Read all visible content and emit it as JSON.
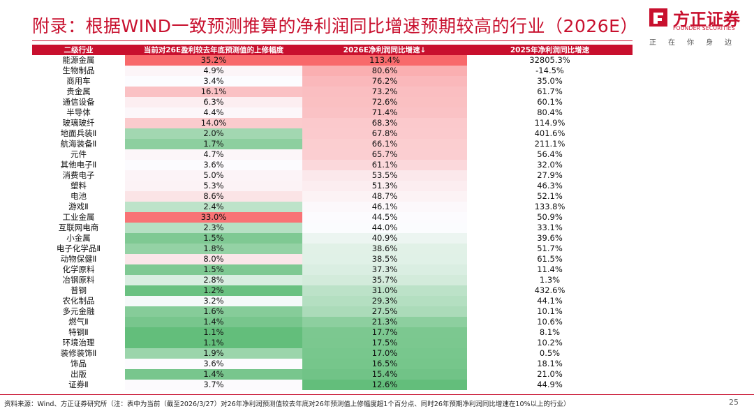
{
  "title": "附录：根据WIND一致预测推算的净利润同比增速预期较高的行业（2026E）",
  "logo": {
    "cn": "方正证券",
    "en": "FOUNDER SECURITIES",
    "slogan": "正在你身边",
    "brand_color": "#c8102e"
  },
  "table": {
    "headers": [
      "二级行业",
      "当前对26E盈利较去年底预测值的上修幅度",
      "2026E净利润同比增速↓",
      "2025年净利润同比增速"
    ],
    "rows": [
      [
        "能源金属",
        "35.2%",
        "113.4%",
        "32805.3%"
      ],
      [
        "生物制品",
        "4.9%",
        "80.6%",
        "-14.5%"
      ],
      [
        "商用车",
        "3.4%",
        "76.2%",
        "35.0%"
      ],
      [
        "贵金属",
        "16.1%",
        "73.2%",
        "61.7%"
      ],
      [
        "通信设备",
        "6.3%",
        "72.6%",
        "60.1%"
      ],
      [
        "半导体",
        "4.4%",
        "71.4%",
        "80.4%"
      ],
      [
        "玻璃玻纤",
        "14.0%",
        "68.3%",
        "114.9%"
      ],
      [
        "地面兵装Ⅱ",
        "2.0%",
        "67.8%",
        "401.6%"
      ],
      [
        "航海装备Ⅱ",
        "1.7%",
        "66.1%",
        "211.1%"
      ],
      [
        "元件",
        "4.7%",
        "65.7%",
        "56.4%"
      ],
      [
        "其他电子Ⅱ",
        "3.6%",
        "61.1%",
        "32.0%"
      ],
      [
        "消费电子",
        "5.0%",
        "53.5%",
        "27.9%"
      ],
      [
        "塑料",
        "5.3%",
        "51.3%",
        "46.3%"
      ],
      [
        "电池",
        "8.6%",
        "48.7%",
        "52.1%"
      ],
      [
        "游戏Ⅱ",
        "2.4%",
        "46.1%",
        "133.8%"
      ],
      [
        "工业金属",
        "33.0%",
        "44.5%",
        "50.9%"
      ],
      [
        "互联网电商",
        "2.3%",
        "44.0%",
        "33.1%"
      ],
      [
        "小金属",
        "1.5%",
        "40.9%",
        "39.6%"
      ],
      [
        "电子化学品Ⅱ",
        "1.8%",
        "38.6%",
        "51.7%"
      ],
      [
        "动物保健Ⅱ",
        "8.0%",
        "38.5%",
        "61.5%"
      ],
      [
        "化学原料",
        "1.5%",
        "37.3%",
        "11.4%"
      ],
      [
        "冶钢原料",
        "2.8%",
        "35.7%",
        "1.3%"
      ],
      [
        "普钢",
        "1.2%",
        "31.0%",
        "432.6%"
      ],
      [
        "农化制品",
        "3.2%",
        "29.3%",
        "44.1%"
      ],
      [
        "多元金融",
        "1.6%",
        "27.5%",
        "10.1%"
      ],
      [
        "燃气Ⅱ",
        "1.4%",
        "21.3%",
        "10.6%"
      ],
      [
        "特钢Ⅱ",
        "1.1%",
        "17.7%",
        "8.1%"
      ],
      [
        "环境治理",
        "1.1%",
        "17.5%",
        "10.2%"
      ],
      [
        "装修装饰Ⅱ",
        "1.9%",
        "17.0%",
        "0.5%"
      ],
      [
        "饰品",
        "3.6%",
        "16.5%",
        "18.1%"
      ],
      [
        "出版",
        "1.4%",
        "15.4%",
        "21.0%"
      ],
      [
        "证券Ⅱ",
        "3.7%",
        "12.6%",
        "44.9%"
      ]
    ]
  },
  "colors": {
    "high": "#f8696b",
    "mid": "#fcfcff",
    "low": "#63be7b"
  },
  "footer": "资料来源：Wind、方正证券研究所（注：表中为当前（截至2026/3/27）对26年净利润预测值较去年底对26年预测值上修幅度超1个百分点、同时26年预期净利润同比增速在10%以上的行业）",
  "page_number": "25"
}
